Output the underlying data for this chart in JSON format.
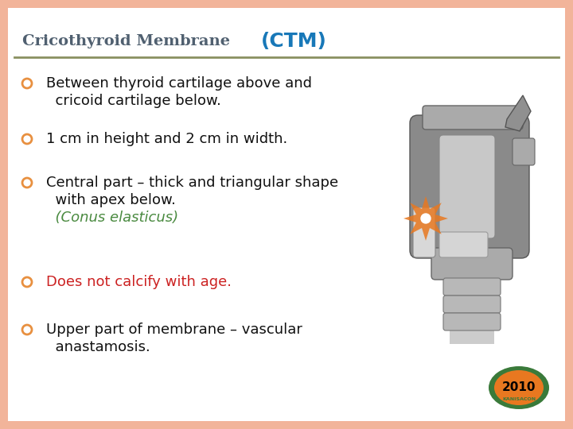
{
  "bg_color": "#ffffff",
  "border_color": "#f2b49a",
  "border_width": 10,
  "title_small": "Cricothyroid Membrane",
  "title_ctm": "(CTM)",
  "title_small_color": "#506070",
  "title_ctm_color": "#1878b8",
  "divider_color": "#8a9060",
  "bullet_color": "#e89040",
  "bullets": [
    {
      "lines": [
        "Between thyroid cartilage above and",
        "  cricoid cartilage below."
      ],
      "color": "#111111",
      "italic_part": null
    },
    {
      "lines": [
        "1 cm in height and 2 cm in width."
      ],
      "color": "#111111",
      "italic_part": null
    },
    {
      "lines": [
        "Central part – thick and triangular shape",
        "  with apex below.",
        "  (Conus elasticus)"
      ],
      "color": "#111111",
      "italic_part": "  (Conus elasticus)",
      "italic_color": "#4a8a40"
    },
    {
      "lines": [
        "Does not calcify with age."
      ],
      "color": "#cc2222",
      "italic_part": null
    },
    {
      "lines": [
        "Upper part of membrane – vascular",
        "  anastamosis."
      ],
      "color": "#111111",
      "italic_part": null
    }
  ],
  "badge_text": "2010",
  "badge_ring_text": "KANISACON",
  "badge_color": "#e87820",
  "badge_ring_color": "#3a7a3a",
  "font_size_title": 14,
  "font_size_bullets": 13,
  "font_size_ctm": 18
}
